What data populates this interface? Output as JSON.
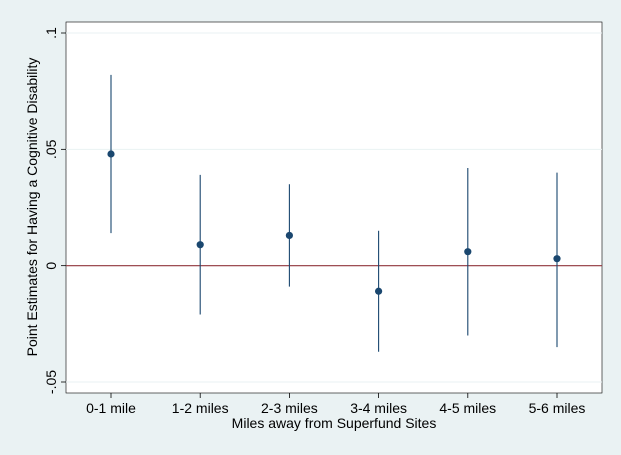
{
  "chart_data": {
    "type": "scatter",
    "subtype": "point-estimates-with-confidence-intervals",
    "xlabel": "Miles away from Superfund Sites",
    "ylabel": "Point Estimates for Having a Cognitive Disability",
    "categories": [
      "0-1 mile",
      "1-2 miles",
      "2-3 miles",
      "3-4 miles",
      "4-5 miles",
      "5-6 miles"
    ],
    "estimates": [
      0.048,
      0.009,
      0.013,
      -0.011,
      0.006,
      0.003
    ],
    "ci_lower": [
      0.014,
      -0.021,
      -0.009,
      -0.037,
      -0.03,
      -0.035
    ],
    "ci_upper": [
      0.082,
      0.039,
      0.035,
      0.015,
      0.042,
      0.04
    ],
    "ylim": [
      -0.05,
      0.1
    ],
    "yticks": [
      -0.05,
      0,
      0.05,
      0.1
    ],
    "ytick_labels": [
      "-.05",
      "0",
      ".05",
      ".1"
    ],
    "reference_line": 0,
    "grid": true,
    "colors": {
      "background": "#eaf2f3",
      "plot_background": "#ffffff",
      "marker": "#1a476f",
      "ci_line": "#1a476f",
      "reference_line": "#90353b",
      "grid": "#eaf2f3"
    }
  }
}
